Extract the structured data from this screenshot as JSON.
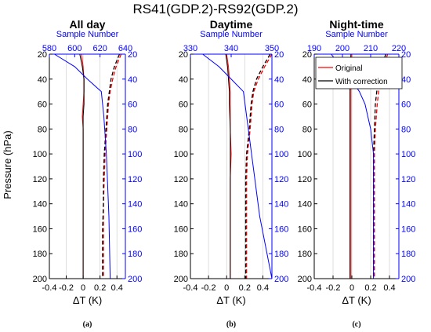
{
  "figure": {
    "suptitle": "RS41(GDP.2)-RS92(GDP.2)",
    "ylabel": "Pressure (hPa)",
    "xlabel": "ΔT (K)",
    "legend": {
      "original": "Original",
      "corrected": "With correction"
    },
    "colors": {
      "original": "#ff0000",
      "corrected": "#000000",
      "sample": "#0000ff",
      "grid": "#d0d0d0"
    }
  },
  "chart_data": [
    {
      "type": "line",
      "title": "All day",
      "subcaption": "(a)",
      "xlabel": "ΔT (K)",
      "ylabel": "Pressure (hPa)",
      "xlim": [
        -0.4,
        0.5
      ],
      "xticks": [
        -0.4,
        -0.2,
        0,
        0.2,
        0.4
      ],
      "ylim": [
        20,
        200
      ],
      "yticks": [
        20,
        40,
        60,
        80,
        100,
        120,
        140,
        160,
        180,
        200
      ],
      "y_reversed": true,
      "top_axis": {
        "label": "Sample Number",
        "lim": [
          580,
          640
        ],
        "ticks": [
          580,
          600,
          620,
          640
        ]
      },
      "grid": true,
      "series": [
        {
          "name": "Original",
          "style": "solid",
          "axis": "bottom",
          "pressure": [
            20,
            30,
            40,
            50,
            60,
            70,
            80,
            100,
            120,
            140,
            160,
            180,
            200
          ],
          "values": [
            -0.02,
            0.0,
            0.01,
            0.01,
            0.0,
            -0.01,
            0.0,
            0.0,
            0.0,
            0.0,
            0.0,
            0.0,
            0.0
          ]
        },
        {
          "name": "With correction",
          "style": "solid",
          "axis": "bottom",
          "pressure": [
            20,
            30,
            40,
            50,
            60,
            70,
            80,
            100,
            120,
            140,
            160,
            180,
            200
          ],
          "values": [
            -0.04,
            -0.01,
            0.01,
            0.01,
            0.01,
            0.0,
            0.0,
            0.0,
            0.0,
            0.0,
            0.0,
            0.0,
            0.0
          ]
        },
        {
          "name": "Original",
          "style": "dashed",
          "axis": "bottom",
          "pressure": [
            20,
            30,
            40,
            50,
            60,
            70,
            80,
            100,
            120,
            140,
            160,
            180,
            200
          ],
          "values": [
            0.45,
            0.39,
            0.35,
            0.32,
            0.3,
            0.29,
            0.28,
            0.26,
            0.25,
            0.24,
            0.24,
            0.24,
            0.24
          ]
        },
        {
          "name": "With correction",
          "style": "dashed",
          "axis": "bottom",
          "pressure": [
            20,
            30,
            40,
            50,
            60,
            70,
            80,
            100,
            120,
            140,
            160,
            180,
            200
          ],
          "values": [
            0.43,
            0.37,
            0.33,
            0.31,
            0.29,
            0.28,
            0.27,
            0.25,
            0.24,
            0.24,
            0.23,
            0.23,
            0.23
          ]
        },
        {
          "name": "",
          "style": "solid",
          "axis": "top",
          "pressure": [
            20,
            30,
            40,
            50,
            70,
            100,
            150,
            200
          ],
          "values": [
            584,
            600,
            610,
            621,
            623,
            625,
            627,
            628
          ]
        }
      ]
    },
    {
      "type": "line",
      "title": "Daytime",
      "subcaption": "(b)",
      "xlabel": "ΔT (K)",
      "ylabel": "",
      "xlim": [
        -0.4,
        0.5
      ],
      "xticks": [
        -0.4,
        -0.2,
        0,
        0.2,
        0.4
      ],
      "ylim": [
        20,
        200
      ],
      "yticks": [
        20,
        40,
        60,
        80,
        100,
        120,
        140,
        160,
        180,
        200
      ],
      "y_reversed": true,
      "top_axis": {
        "label": "Sample Number",
        "lim": [
          330,
          350
        ],
        "ticks": [
          330,
          340,
          350
        ]
      },
      "grid": true,
      "series": [
        {
          "name": "Original",
          "style": "solid",
          "axis": "bottom",
          "pressure": [
            20,
            30,
            40,
            50,
            60,
            80,
            100,
            120,
            140,
            160,
            180,
            200
          ],
          "values": [
            0.0,
            0.02,
            0.03,
            0.04,
            0.04,
            0.04,
            0.05,
            0.04,
            0.04,
            0.04,
            0.04,
            0.04
          ]
        },
        {
          "name": "With correction",
          "style": "solid",
          "axis": "bottom",
          "pressure": [
            20,
            30,
            40,
            50,
            60,
            80,
            100,
            120,
            140,
            160,
            180,
            200
          ],
          "values": [
            -0.01,
            0.01,
            0.02,
            0.03,
            0.03,
            0.04,
            0.04,
            0.04,
            0.04,
            0.04,
            0.04,
            0.04
          ]
        },
        {
          "name": "Original",
          "style": "dashed",
          "axis": "bottom",
          "pressure": [
            20,
            30,
            40,
            50,
            60,
            80,
            100,
            120,
            140,
            160,
            180,
            200
          ],
          "values": [
            0.5,
            0.42,
            0.35,
            0.3,
            0.28,
            0.26,
            0.23,
            0.22,
            0.22,
            0.22,
            0.22,
            0.22
          ]
        },
        {
          "name": "With correction",
          "style": "dashed",
          "axis": "bottom",
          "pressure": [
            20,
            30,
            40,
            50,
            60,
            80,
            100,
            120,
            140,
            160,
            180,
            200
          ],
          "values": [
            0.48,
            0.4,
            0.33,
            0.29,
            0.27,
            0.25,
            0.22,
            0.21,
            0.21,
            0.21,
            0.21,
            0.21
          ]
        },
        {
          "name": "",
          "style": "solid",
          "axis": "top",
          "pressure": [
            20,
            30,
            40,
            50,
            100,
            150,
            200
          ],
          "values": [
            333,
            337,
            340,
            343,
            345,
            347,
            350
          ]
        }
      ]
    },
    {
      "type": "line",
      "title": "Night-time",
      "subcaption": "(c)",
      "xlabel": "ΔT (K)",
      "ylabel": "",
      "xlim": [
        -0.4,
        0.5
      ],
      "xticks": [
        -0.4,
        -0.2,
        0,
        0.2,
        0.4
      ],
      "ylim": [
        20,
        200
      ],
      "yticks": [
        20,
        40,
        60,
        80,
        100,
        120,
        140,
        160,
        180,
        200
      ],
      "y_reversed": true,
      "top_axis": {
        "label": "Sample Number",
        "lim": [
          190,
          220
        ],
        "ticks": [
          190,
          200,
          210,
          220
        ]
      },
      "grid": true,
      "series": [
        {
          "name": "Original",
          "style": "solid",
          "axis": "bottom",
          "pressure": [
            20,
            40,
            60,
            80,
            100,
            120,
            140,
            160,
            180,
            200
          ],
          "values": [
            0.0,
            -0.01,
            -0.01,
            -0.01,
            -0.01,
            -0.01,
            -0.01,
            -0.01,
            -0.01,
            -0.01
          ]
        },
        {
          "name": "With correction",
          "style": "solid",
          "axis": "bottom",
          "pressure": [
            20,
            40,
            60,
            80,
            100,
            120,
            140,
            160,
            180,
            200
          ],
          "values": [
            -0.01,
            -0.02,
            -0.02,
            -0.02,
            -0.02,
            -0.02,
            -0.02,
            -0.02,
            -0.02,
            -0.02
          ]
        },
        {
          "name": "Original",
          "style": "dashed",
          "axis": "bottom",
          "pressure": [
            20,
            40,
            60,
            80,
            100,
            120,
            140,
            160,
            180,
            200
          ],
          "values": [
            0.38,
            0.3,
            0.27,
            0.25,
            0.24,
            0.24,
            0.24,
            0.24,
            0.24,
            0.24
          ]
        },
        {
          "name": "With correction",
          "style": "dashed",
          "axis": "bottom",
          "pressure": [
            20,
            40,
            60,
            80,
            100,
            120,
            140,
            160,
            180,
            200
          ],
          "values": [
            0.36,
            0.28,
            0.25,
            0.24,
            0.23,
            0.23,
            0.23,
            0.23,
            0.23,
            0.23
          ]
        },
        {
          "name": "",
          "style": "solid",
          "axis": "top",
          "pressure": [
            20,
            40,
            50,
            60,
            80,
            100,
            150,
            200
          ],
          "values": [
            196,
            203,
            206,
            208,
            210,
            211,
            211,
            211
          ]
        }
      ]
    }
  ]
}
